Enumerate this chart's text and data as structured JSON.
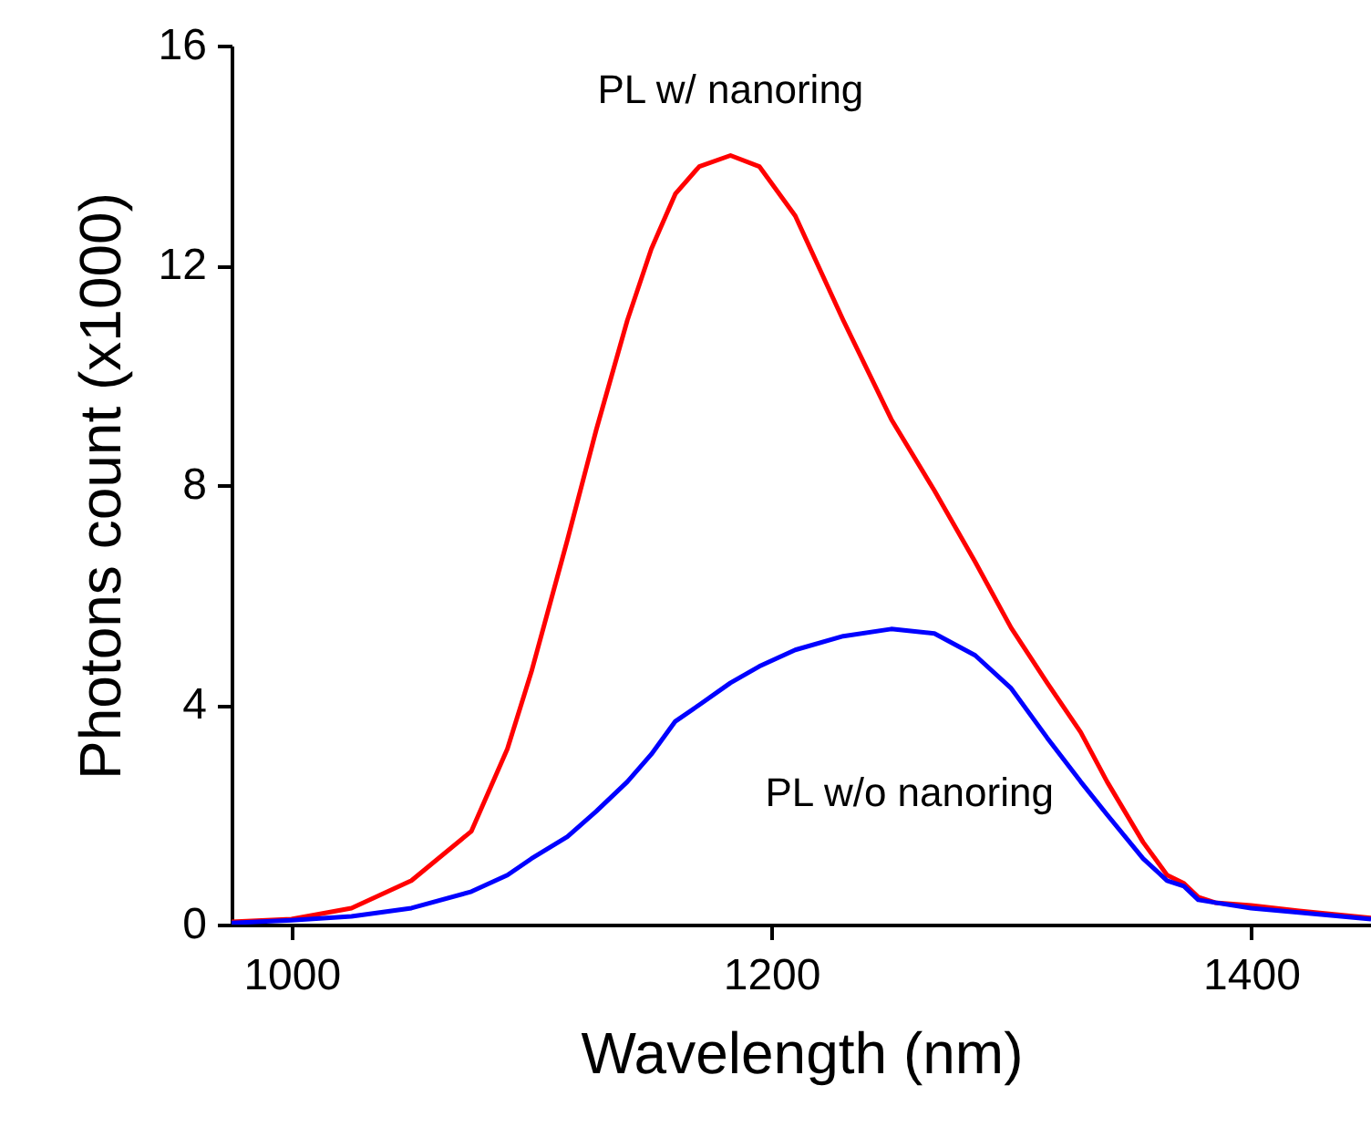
{
  "chart_data": {
    "type": "line",
    "xlabel": "Wavelength (nm)",
    "ylabel": "Photons count (x1000)",
    "x": [
      975,
      1000,
      1025,
      1050,
      1075,
      1090,
      1100,
      1115,
      1127,
      1140,
      1150,
      1160,
      1170,
      1183,
      1195,
      1210,
      1230,
      1250,
      1268,
      1285,
      1300,
      1315,
      1329,
      1340,
      1355,
      1365,
      1372,
      1378,
      1385,
      1400,
      1420,
      1450
    ],
    "series": [
      {
        "name": "PL w/ nanoring",
        "color": "#ff0000",
        "values": [
          0.05,
          0.1,
          0.3,
          0.8,
          1.7,
          3.2,
          4.6,
          7.0,
          9.0,
          11.0,
          12.3,
          13.3,
          13.8,
          14.0,
          13.8,
          12.9,
          11.0,
          9.2,
          7.9,
          6.6,
          5.4,
          4.4,
          3.5,
          2.6,
          1.5,
          0.9,
          0.75,
          0.5,
          0.4,
          0.35,
          0.25,
          0.12
        ]
      },
      {
        "name": "PL w/o nanoring",
        "color": "#0000ff",
        "values": [
          0.03,
          0.08,
          0.15,
          0.3,
          0.6,
          0.9,
          1.2,
          1.6,
          2.06,
          2.6,
          3.1,
          3.7,
          4.0,
          4.4,
          4.7,
          5.0,
          5.25,
          5.38,
          5.3,
          4.9,
          4.3,
          3.4,
          2.6,
          2.0,
          1.2,
          0.8,
          0.7,
          0.45,
          0.4,
          0.3,
          0.22,
          0.1
        ]
      }
    ],
    "xlim": [
      975,
      1450
    ],
    "xticks": [
      1000,
      1200,
      1400
    ],
    "ylim": [
      0,
      16
    ],
    "yticks": [
      0,
      4,
      8,
      12,
      16
    ],
    "grid": false,
    "legend": false,
    "marker": "none",
    "line_style": "solid"
  }
}
